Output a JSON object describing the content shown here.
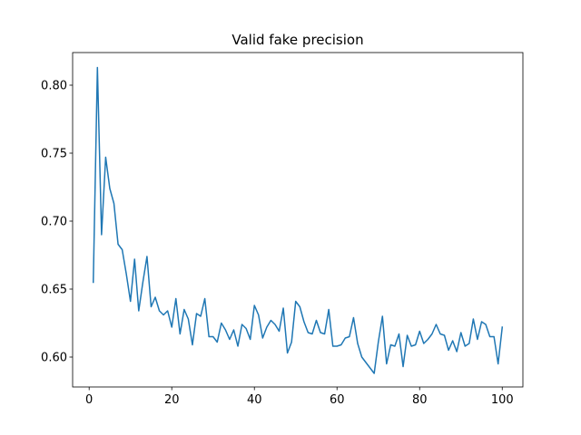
{
  "chart_data": {
    "type": "line",
    "title": "Valid fake precision",
    "xlabel": "",
    "ylabel": "",
    "xlim": [
      -4,
      105
    ],
    "ylim": [
      0.578,
      0.824
    ],
    "xticks": [
      0,
      20,
      40,
      60,
      80,
      100
    ],
    "yticks": [
      0.6,
      0.65,
      0.7,
      0.75,
      0.8
    ],
    "xtick_labels": [
      "0",
      "20",
      "40",
      "60",
      "80",
      "100"
    ],
    "ytick_labels": [
      "0.60",
      "0.65",
      "0.70",
      "0.75",
      "0.80"
    ],
    "grid": false,
    "series": [
      {
        "color": "#1f77b4",
        "x": [
          1,
          2,
          3,
          4,
          5,
          6,
          7,
          8,
          9,
          10,
          11,
          12,
          13,
          14,
          15,
          16,
          17,
          18,
          19,
          20,
          21,
          22,
          23,
          24,
          25,
          26,
          27,
          28,
          29,
          30,
          31,
          32,
          33,
          34,
          35,
          36,
          37,
          38,
          39,
          40,
          41,
          42,
          43,
          44,
          45,
          46,
          47,
          48,
          49,
          50,
          51,
          52,
          53,
          54,
          55,
          56,
          57,
          58,
          59,
          60,
          61,
          62,
          63,
          64,
          65,
          66,
          67,
          68,
          69,
          70,
          71,
          72,
          73,
          74,
          75,
          76,
          77,
          78,
          79,
          80,
          81,
          82,
          83,
          84,
          85,
          86,
          87,
          88,
          89,
          90,
          91,
          92,
          93,
          94,
          95,
          96,
          97,
          98,
          99,
          100
        ],
        "values": [
          0.655,
          0.813,
          0.69,
          0.747,
          0.724,
          0.713,
          0.683,
          0.679,
          0.661,
          0.641,
          0.672,
          0.634,
          0.655,
          0.674,
          0.637,
          0.644,
          0.634,
          0.631,
          0.634,
          0.622,
          0.643,
          0.617,
          0.635,
          0.628,
          0.609,
          0.632,
          0.63,
          0.643,
          0.615,
          0.615,
          0.611,
          0.625,
          0.62,
          0.613,
          0.62,
          0.608,
          0.624,
          0.621,
          0.613,
          0.638,
          0.631,
          0.614,
          0.622,
          0.627,
          0.624,
          0.619,
          0.636,
          0.603,
          0.611,
          0.641,
          0.637,
          0.626,
          0.618,
          0.617,
          0.627,
          0.618,
          0.617,
          0.635,
          0.608,
          0.608,
          0.609,
          0.614,
          0.615,
          0.629,
          0.61,
          0.6,
          0.596,
          0.592,
          0.588,
          0.611,
          0.63,
          0.595,
          0.609,
          0.608,
          0.617,
          0.593,
          0.616,
          0.608,
          0.609,
          0.619,
          0.61,
          0.613,
          0.617,
          0.624,
          0.617,
          0.616,
          0.605,
          0.612,
          0.604,
          0.618,
          0.608,
          0.61,
          0.628,
          0.613,
          0.626,
          0.624,
          0.615,
          0.615,
          0.595,
          0.622
        ]
      }
    ]
  }
}
